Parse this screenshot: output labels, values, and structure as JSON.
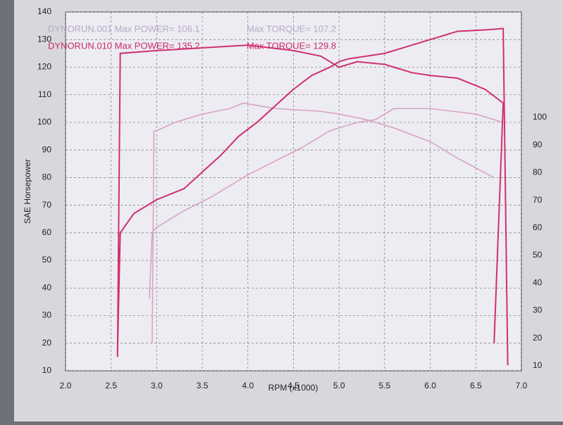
{
  "chart_data": {
    "type": "line",
    "annotations": [
      "DYNORUN.001  Max POWER= 106.1",
      "Max TORQUE= 107.2",
      "DYNORUN.010  Max POWER= 135.2",
      "Max TORQUE= 129.8"
    ],
    "annotation_colors": [
      "#b8a8c8",
      "#b8a8c8",
      "#cc2a6a",
      "#cc2a6a"
    ],
    "xlabel": "RPM (x1000)",
    "ylabel": "SAE Horsepower",
    "xlim": [
      2,
      7
    ],
    "ylim": [
      10,
      140
    ],
    "y2lim": [
      10,
      140
    ],
    "xticks": [
      {
        "value": 2,
        "label": "2.0"
      },
      2.5,
      {
        "value": 3,
        "label": "3.0"
      },
      3.5,
      {
        "value": 4,
        "label": "4.0"
      },
      4.5,
      {
        "value": 5,
        "label": "5.0"
      },
      5.5,
      {
        "value": 6,
        "label": "6.0"
      },
      6.5,
      {
        "value": 7,
        "label": "7.0"
      }
    ],
    "yticks": [
      10,
      20,
      30,
      40,
      50,
      60,
      70,
      80,
      90,
      100,
      110,
      120,
      130,
      140
    ],
    "y2ticks": [
      10,
      20,
      30,
      40,
      50,
      60,
      70,
      80,
      90,
      100
    ],
    "grid": true,
    "series": [
      {
        "color": "#d8a0c0",
        "x": [
          2.95,
          2.97,
          3.0,
          3.2,
          3.5,
          3.8,
          3.95,
          4.3,
          4.8,
          5.0,
          5.3,
          5.6,
          6.0,
          6.3,
          6.7
        ],
        "values": [
          20,
          97,
          97,
          100,
          103,
          105,
          107,
          105,
          104,
          103,
          101,
          98,
          93,
          87,
          80
        ]
      },
      {
        "color": "#d8a0c0",
        "x": [
          2.92,
          2.95,
          3.0,
          3.3,
          3.6,
          4.0,
          4.3,
          4.6,
          4.9,
          5.2,
          5.4,
          5.6,
          6.0,
          6.5,
          6.8
        ],
        "values": [
          36,
          60,
          62,
          68,
          73,
          81,
          86,
          91,
          97,
          100,
          101,
          105,
          105,
          103,
          100
        ]
      },
      {
        "color": "#d0306f",
        "x": [
          2.57,
          2.6,
          3.0,
          3.5,
          4.0,
          4.5,
          4.8,
          5.0,
          5.2,
          5.5,
          5.8,
          6.0,
          6.3,
          6.6,
          6.8,
          6.7
        ],
        "values": [
          15,
          125,
          126,
          127,
          128,
          126,
          124,
          120,
          122,
          121,
          118,
          117,
          116,
          112,
          107,
          20
        ]
      },
      {
        "color": "#d0306f",
        "x": [
          2.57,
          2.6,
          2.75,
          3.0,
          3.3,
          3.5,
          3.7,
          3.9,
          4.1,
          4.3,
          4.5,
          4.7,
          4.9,
          5.0,
          5.1,
          5.5,
          5.8,
          6.1,
          6.3,
          6.6,
          6.8,
          6.85
        ],
        "values": [
          17,
          60,
          67,
          72,
          76,
          82,
          88,
          95,
          100,
          106,
          112,
          117,
          120,
          122,
          123,
          125,
          128,
          131,
          133,
          133.5,
          134,
          12
        ]
      }
    ]
  }
}
